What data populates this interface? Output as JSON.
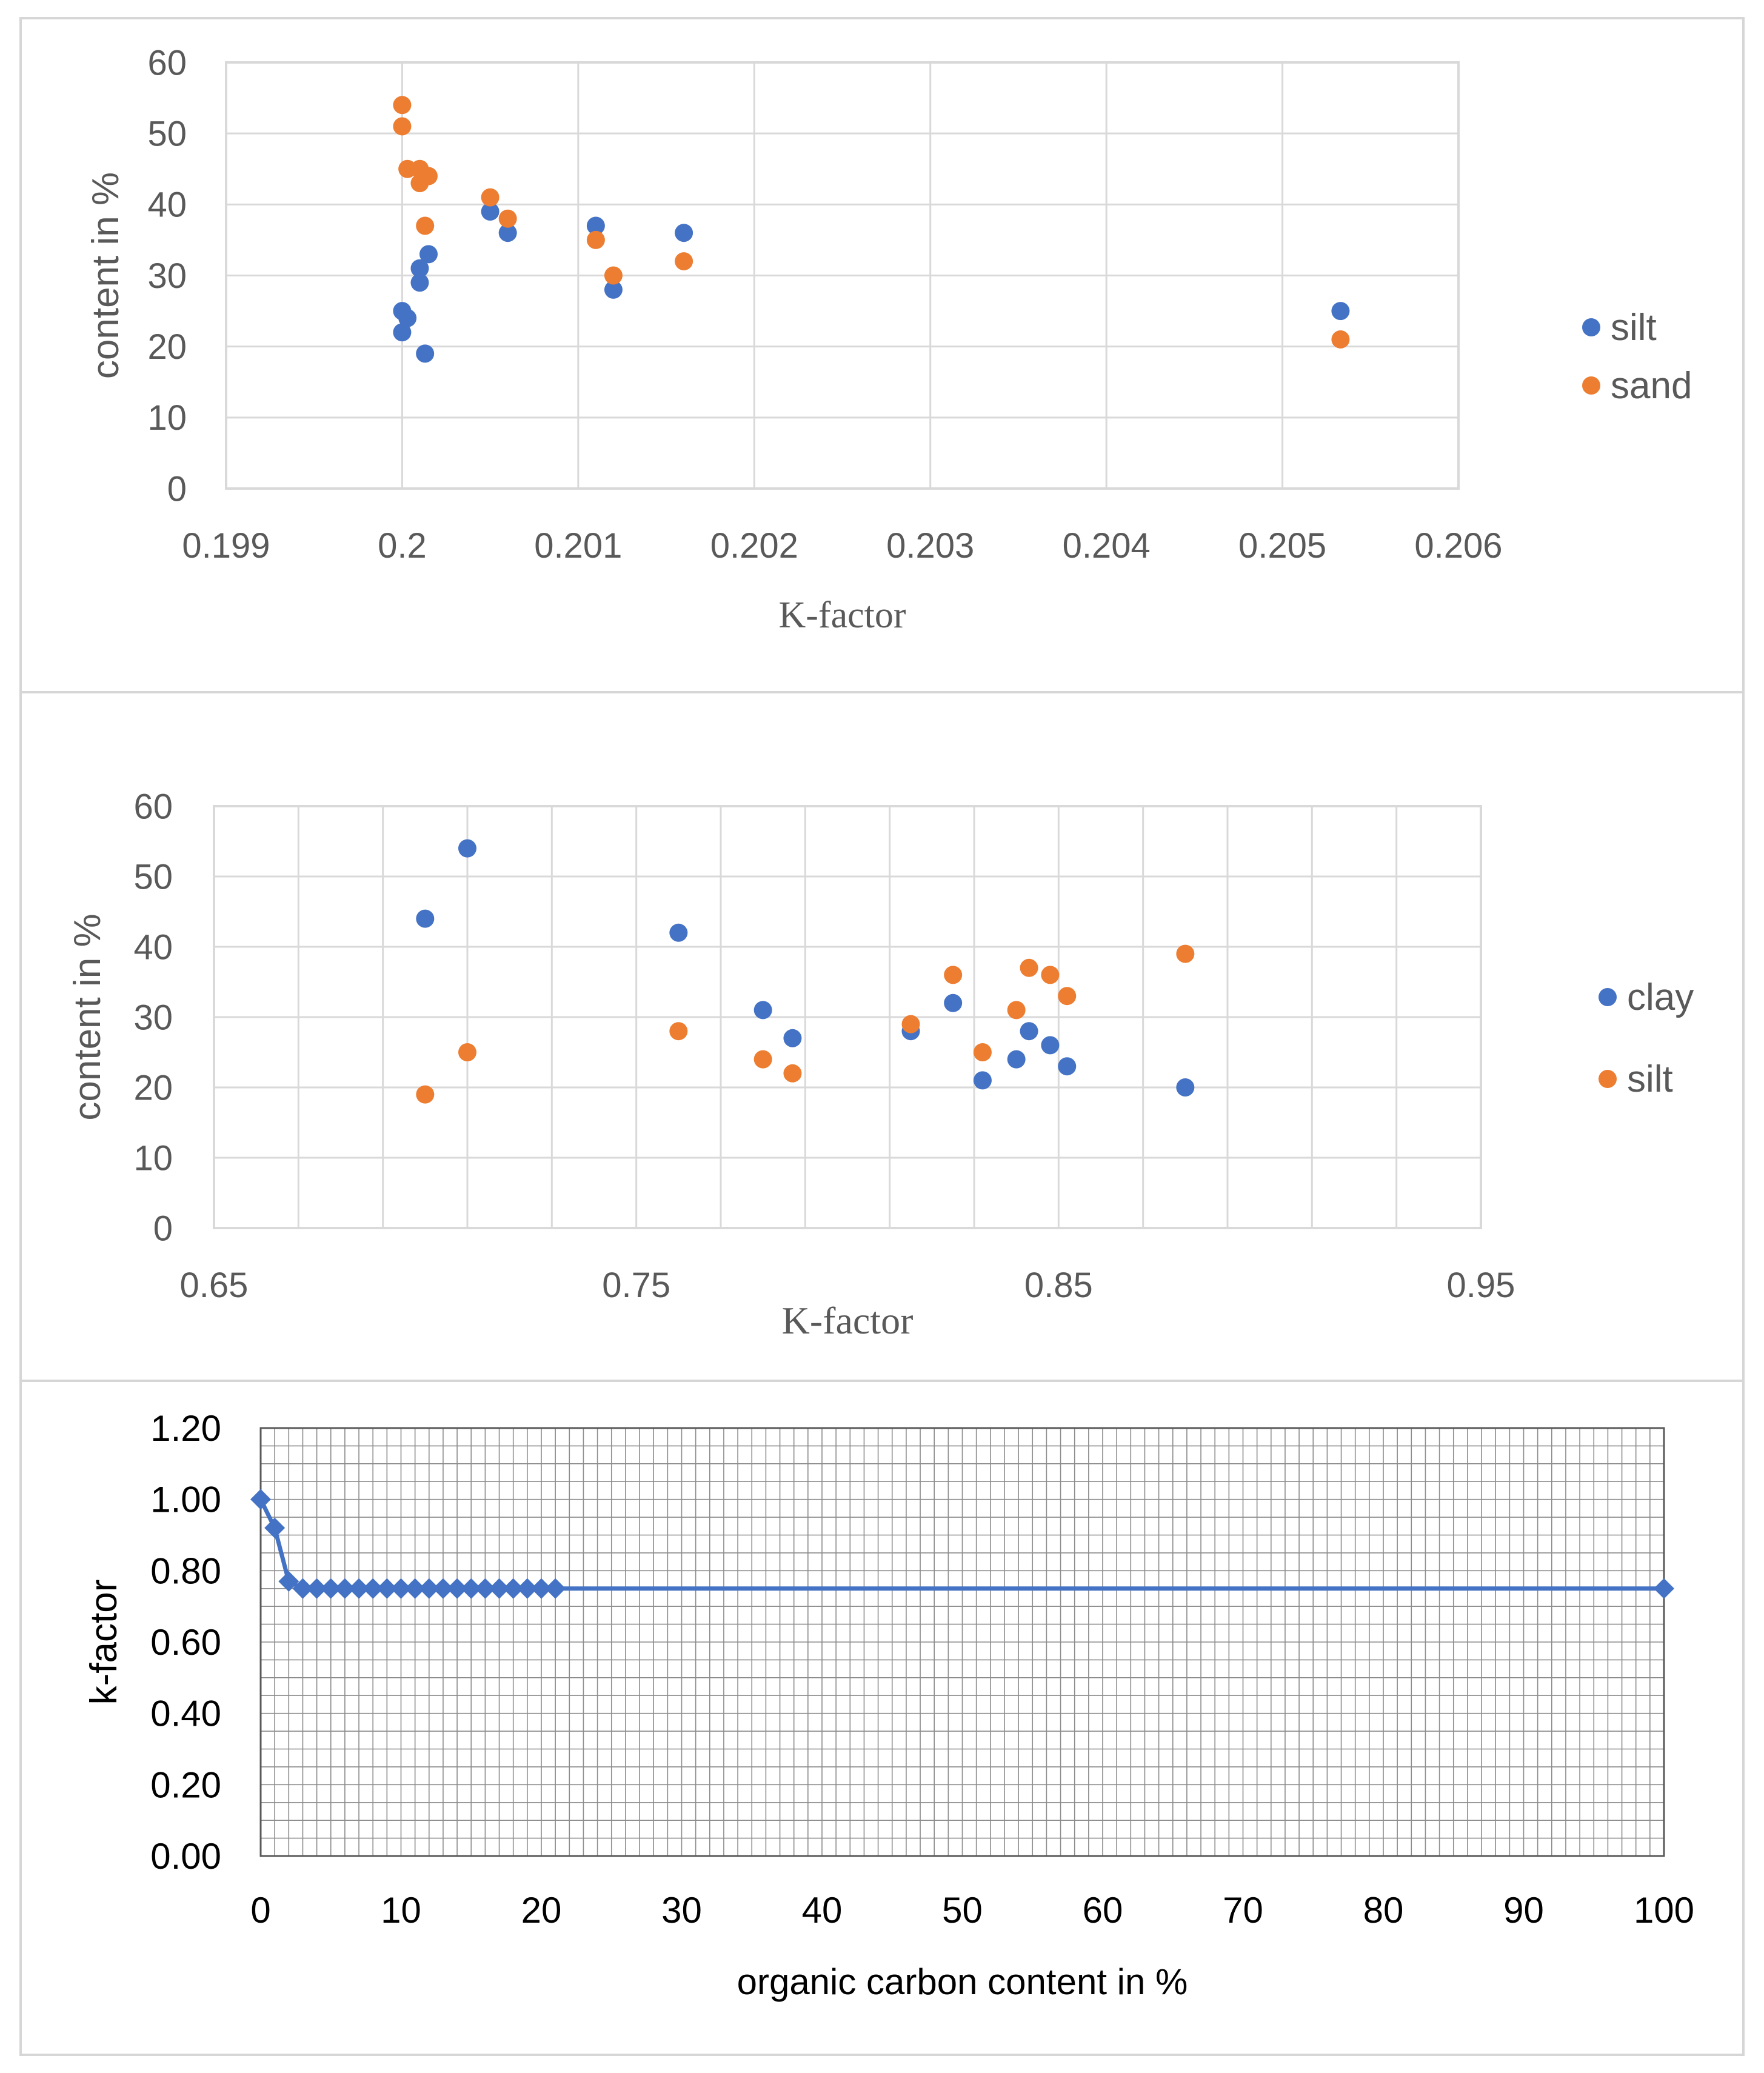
{
  "colors": {
    "blue": "#4472c4",
    "orange": "#ed7d31",
    "grid": "#d9d9d9",
    "frame": "#d6d6d6",
    "text": "#595959"
  },
  "chart_data": [
    {
      "type": "scatter",
      "title": "",
      "xlabel": "K-factor",
      "ylabel": "content in %",
      "xlim": [
        0.199,
        0.206
      ],
      "ylim": [
        0,
        60
      ],
      "xticks": [
        "0.199",
        "0.2",
        "0.201",
        "0.202",
        "0.203",
        "0.204",
        "0.205",
        "0.206"
      ],
      "yticks": [
        "0",
        "10",
        "20",
        "30",
        "40",
        "50",
        "60"
      ],
      "legend": "right",
      "series": [
        {
          "name": "silt",
          "color": "#4472c4",
          "points": [
            [
              0.2,
              25
            ],
            [
              0.2,
              22
            ],
            [
              0.20003,
              24
            ],
            [
              0.2001,
              31
            ],
            [
              0.2001,
              29
            ],
            [
              0.20015,
              33
            ],
            [
              0.20013,
              19
            ],
            [
              0.2005,
              39
            ],
            [
              0.2006,
              36
            ],
            [
              0.2011,
              37
            ],
            [
              0.2012,
              28
            ],
            [
              0.2016,
              36
            ],
            [
              0.20533,
              25
            ]
          ]
        },
        {
          "name": "sand",
          "color": "#ed7d31",
          "points": [
            [
              0.2,
              54
            ],
            [
              0.2,
              51
            ],
            [
              0.20003,
              45
            ],
            [
              0.2001,
              45
            ],
            [
              0.2001,
              43
            ],
            [
              0.20013,
              44
            ],
            [
              0.20015,
              44
            ],
            [
              0.20013,
              37
            ],
            [
              0.2005,
              41
            ],
            [
              0.2006,
              38
            ],
            [
              0.2011,
              35
            ],
            [
              0.2012,
              30
            ],
            [
              0.2016,
              32
            ],
            [
              0.20533,
              21
            ]
          ]
        }
      ]
    },
    {
      "type": "scatter",
      "title": "",
      "xlabel": "K-factor",
      "ylabel": "content in %",
      "xlim": [
        0.65,
        0.95
      ],
      "ylim": [
        0,
        60
      ],
      "xticks": [
        "0.65",
        "0.75",
        "0.85",
        "0.95"
      ],
      "yticks": [
        "0",
        "10",
        "20",
        "30",
        "40",
        "50",
        "60"
      ],
      "legend": "right",
      "series": [
        {
          "name": "clay",
          "color": "#4472c4",
          "points": [
            [
              0.7,
              44
            ],
            [
              0.71,
              54
            ],
            [
              0.76,
              42
            ],
            [
              0.78,
              31
            ],
            [
              0.787,
              27
            ],
            [
              0.815,
              28
            ],
            [
              0.825,
              32
            ],
            [
              0.832,
              21
            ],
            [
              0.84,
              24
            ],
            [
              0.843,
              28
            ],
            [
              0.848,
              26
            ],
            [
              0.852,
              23
            ],
            [
              0.88,
              20
            ]
          ]
        },
        {
          "name": "silt",
          "color": "#ed7d31",
          "points": [
            [
              0.7,
              19
            ],
            [
              0.71,
              25
            ],
            [
              0.76,
              28
            ],
            [
              0.78,
              24
            ],
            [
              0.787,
              22
            ],
            [
              0.815,
              29
            ],
            [
              0.825,
              36
            ],
            [
              0.832,
              25
            ],
            [
              0.84,
              31
            ],
            [
              0.843,
              37
            ],
            [
              0.848,
              36
            ],
            [
              0.852,
              33
            ],
            [
              0.88,
              39
            ]
          ]
        }
      ]
    },
    {
      "type": "line",
      "title": "",
      "xlabel": "organic carbon content in %",
      "ylabel": "k-factor",
      "xlim": [
        0,
        100
      ],
      "ylim": [
        0,
        1.2
      ],
      "xticks": [
        "0",
        "10",
        "20",
        "30",
        "40",
        "50",
        "60",
        "70",
        "80",
        "90",
        "100"
      ],
      "yticks": [
        "0.00",
        "0.20",
        "0.40",
        "0.60",
        "0.80",
        "1.00",
        "1.20"
      ],
      "series": [
        {
          "name": "k-factor",
          "color": "#4472c4",
          "marker": "diamond",
          "x": [
            0,
            1,
            2,
            3,
            4,
            5,
            6,
            7,
            8,
            9,
            10,
            11,
            12,
            13,
            14,
            15,
            16,
            17,
            18,
            19,
            20,
            21,
            100
          ],
          "y": [
            1.0,
            0.92,
            0.77,
            0.75,
            0.75,
            0.75,
            0.75,
            0.75,
            0.75,
            0.75,
            0.75,
            0.75,
            0.75,
            0.75,
            0.75,
            0.75,
            0.75,
            0.75,
            0.75,
            0.75,
            0.75,
            0.75,
            0.75
          ]
        }
      ]
    }
  ]
}
